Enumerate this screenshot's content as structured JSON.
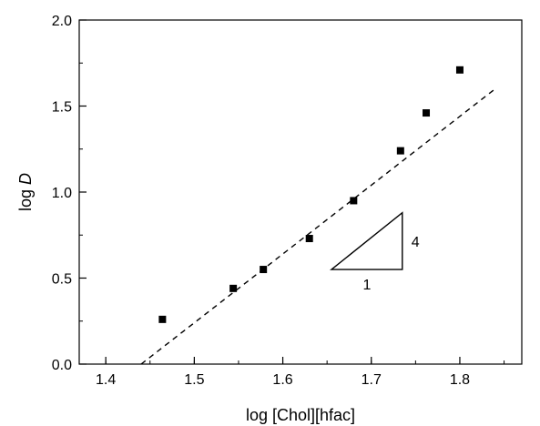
{
  "chart_data": {
    "type": "scatter",
    "xlabel": "log [Chol][hfac]",
    "ylabel_prefix": "log ",
    "ylabel_italic": "D",
    "xlim": [
      1.37,
      1.87
    ],
    "ylim": [
      0.0,
      2.0
    ],
    "x_ticks": [
      "1.4",
      "1.5",
      "1.6",
      "1.7",
      "1.8"
    ],
    "y_ticks": [
      "0.0",
      "0.5",
      "1.0",
      "1.5",
      "2.0"
    ],
    "x_minor_step": 0.05,
    "y_minor_step": 0.25,
    "grid": false,
    "series": [
      {
        "marker": "square",
        "color": "#000000",
        "points": [
          [
            1.464,
            0.26
          ],
          [
            1.544,
            0.44
          ],
          [
            1.578,
            0.55
          ],
          [
            1.63,
            0.73
          ],
          [
            1.68,
            0.95
          ],
          [
            1.733,
            1.24
          ],
          [
            1.762,
            1.46
          ],
          [
            1.8,
            1.71
          ]
        ]
      }
    ],
    "fit_line": {
      "style": "dashed",
      "color": "#000000",
      "x": [
        1.44,
        1.84
      ],
      "y": [
        0.0,
        1.6
      ]
    },
    "slope_triangle": {
      "corner_left": [
        1.655,
        0.55
      ],
      "corner_right": [
        1.735,
        0.55
      ],
      "corner_top": [
        1.735,
        0.88
      ],
      "run_label": "1",
      "rise_label": "4"
    }
  }
}
